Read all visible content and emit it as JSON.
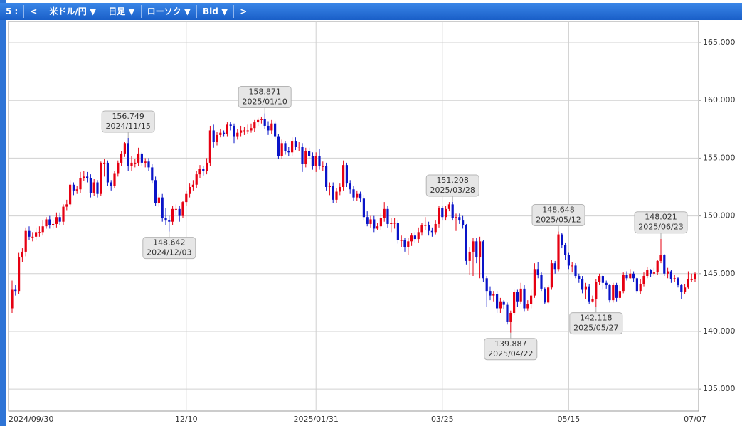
{
  "toolbar": {
    "items": [
      "5 :",
      "<",
      "米ドル/円 ▼",
      "日足 ▼",
      "ローソク ▼",
      "Bid ▼",
      ">"
    ]
  },
  "chart_data": {
    "type": "candlestick",
    "categories": [
      "2024/09/30",
      null,
      null,
      null,
      null,
      null,
      null,
      null,
      null,
      null,
      null,
      null,
      null,
      null,
      null,
      null,
      null,
      null,
      null,
      null,
      null,
      null,
      null,
      null,
      null,
      null,
      null,
      null,
      null,
      null,
      null,
      null,
      null,
      null,
      null,
      null,
      null,
      null,
      null,
      null,
      null,
      null,
      null,
      null,
      null,
      null,
      null,
      null,
      null,
      null,
      null,
      "12/10",
      null,
      null,
      null,
      null,
      null,
      null,
      null,
      null,
      null,
      null,
      null,
      null,
      null,
      null,
      null,
      null,
      null,
      null,
      null,
      null,
      null,
      null,
      null,
      null,
      null,
      null,
      null,
      null,
      null,
      null,
      null,
      null,
      null,
      null,
      null,
      null,
      null,
      "2025/01/31",
      null,
      null,
      null,
      null,
      null,
      null,
      null,
      null,
      null,
      null,
      null,
      null,
      null,
      null,
      null,
      null,
      null,
      null,
      null,
      null,
      null,
      null,
      null,
      null,
      null,
      null,
      null,
      null,
      null,
      null,
      null,
      null,
      null,
      null,
      null,
      null,
      "03/25",
      null,
      null,
      null,
      null,
      null,
      null,
      null,
      null,
      null,
      null,
      null,
      null,
      null,
      null,
      null,
      null,
      null,
      null,
      null,
      null,
      null,
      null,
      null,
      null,
      null,
      null,
      null,
      null,
      null,
      null,
      null,
      null,
      null,
      null,
      null,
      null,
      "05/15",
      null,
      null,
      null,
      null,
      null,
      null,
      null,
      null,
      null,
      null,
      null,
      null,
      null,
      null,
      null,
      null,
      null,
      null,
      null,
      null,
      null,
      null,
      null,
      null,
      null,
      null,
      null,
      null,
      null,
      null,
      null,
      null,
      null,
      null,
      null,
      null,
      "07/07"
    ],
    "open": [
      142.0,
      143.6,
      143.5,
      146.4,
      146.9,
      148.7,
      148.2,
      148.2,
      148.6,
      148.6,
      149.1,
      149.7,
      149.2,
      149.3,
      149.9,
      149.5,
      150.8,
      151.0,
      152.7,
      152.2,
      152.3,
      153.3,
      153.4,
      153.3,
      152.0,
      152.9,
      151.9,
      154.6,
      154.6,
      152.9,
      152.6,
      153.7,
      154.6,
      155.4,
      156.3,
      154.3,
      154.6,
      154.6,
      155.4,
      154.6,
      154.7,
      154.2,
      153.1,
      151.1,
      151.6,
      149.8,
      149.6,
      149.5,
      150.6,
      150.6,
      150.0,
      151.2,
      151.9,
      152.5,
      152.7,
      153.6,
      154.1,
      153.9,
      154.6,
      157.4,
      156.4,
      157.0,
      157.2,
      157.1,
      157.9,
      157.8,
      156.9,
      157.2,
      157.4,
      157.4,
      157.4,
      157.6,
      158.1,
      158.3,
      158.4,
      157.8,
      157.4,
      158.0,
      156.9,
      155.2,
      156.3,
      155.6,
      155.5,
      156.5,
      156.0,
      156.0,
      154.5,
      155.6,
      155.2,
      154.3,
      155.2,
      154.3,
      154.3,
      152.5,
      152.6,
      151.4,
      152.1,
      152.5,
      154.4,
      152.8,
      152.3,
      151.6,
      151.9,
      151.5,
      149.9,
      149.3,
      149.7,
      148.9,
      149.1,
      149.8,
      150.6,
      149.3,
      149.4,
      149.4,
      147.9,
      147.9,
      147.3,
      147.8,
      148.3,
      148.0,
      148.6,
      149.2,
      149.2,
      148.7,
      148.6,
      149.3,
      150.7,
      149.9,
      150.6,
      151.0,
      149.8,
      149.9,
      149.6,
      149.2,
      146.1,
      146.9,
      147.8,
      146.4,
      147.8,
      144.6,
      143.5,
      143.1,
      143.2,
      142.0,
      142.6,
      142.3,
      140.8,
      141.6,
      143.4,
      142.6,
      143.7,
      142.0,
      142.4,
      143.1,
      145.4,
      144.9,
      143.7,
      142.5,
      143.8,
      145.9,
      145.4,
      148.4,
      147.5,
      146.6,
      145.7,
      145.7,
      144.8,
      144.5,
      143.6,
      143.9,
      142.6,
      142.8,
      144.3,
      144.8,
      144.2,
      144.0,
      142.7,
      144.0,
      142.9,
      143.5,
      144.9,
      144.6,
      145.0,
      144.6,
      143.5,
      144.1,
      144.8,
      145.3,
      145.0,
      145.1,
      146.1,
      146.6,
      145.0,
      145.2,
      144.5,
      144.6,
      144.0,
      143.4,
      143.8,
      144.5,
      144.5
    ],
    "high": [
      144.4,
      144.0,
      146.8,
      147.2,
      149.0,
      149.1,
      148.6,
      149.0,
      149.1,
      149.6,
      149.9,
      150.0,
      149.6,
      150.3,
      150.3,
      151.0,
      151.4,
      153.1,
      152.9,
      152.6,
      153.8,
      153.9,
      153.8,
      153.6,
      153.2,
      153.1,
      154.7,
      154.9,
      154.8,
      153.1,
      153.9,
      154.8,
      155.6,
      156.4,
      156.749,
      155.2,
      154.9,
      155.9,
      155.5,
      155.0,
      155.0,
      154.5,
      153.4,
      151.9,
      151.9,
      150.7,
      150.0,
      150.9,
      151.0,
      150.9,
      151.3,
      152.2,
      152.8,
      153.1,
      153.9,
      154.4,
      154.3,
      155.0,
      157.8,
      157.9,
      157.3,
      157.5,
      157.4,
      158.1,
      158.1,
      158.0,
      157.5,
      157.8,
      157.7,
      157.9,
      158.0,
      158.3,
      158.5,
      158.6,
      158.871,
      158.2,
      158.3,
      158.2,
      157.1,
      156.6,
      156.5,
      156.0,
      156.8,
      156.8,
      156.4,
      156.3,
      155.9,
      155.9,
      155.5,
      155.5,
      155.8,
      154.7,
      154.6,
      152.9,
      152.9,
      152.4,
      152.8,
      154.8,
      154.6,
      153.1,
      152.6,
      152.2,
      152.1,
      151.8,
      150.4,
      150.0,
      150.0,
      149.4,
      150.2,
      151.2,
      150.9,
      149.8,
      149.8,
      149.6,
      148.3,
      148.1,
      148.1,
      148.5,
      148.6,
      149.0,
      149.4,
      149.9,
      149.5,
      149.0,
      149.6,
      150.9,
      150.9,
      150.9,
      151.2,
      151.208,
      150.2,
      150.2,
      150.0,
      149.3,
      147.3,
      148.1,
      148.1,
      148.2,
      147.9,
      144.8,
      143.9,
      143.5,
      143.5,
      142.9,
      142.7,
      142.5,
      141.8,
      143.6,
      143.6,
      144.2,
      144.0,
      142.7,
      143.6,
      145.9,
      146.0,
      145.1,
      143.8,
      144.0,
      146.2,
      146.1,
      148.648,
      148.5,
      147.7,
      146.8,
      146.0,
      145.9,
      145.0,
      144.8,
      144.2,
      144.1,
      143.1,
      144.5,
      145.0,
      144.9,
      144.4,
      144.1,
      144.2,
      144.2,
      144.0,
      145.1,
      145.2,
      145.4,
      145.2,
      144.7,
      144.5,
      145.1,
      145.6,
      145.4,
      145.5,
      146.2,
      148.021,
      146.7,
      145.5,
      145.3,
      144.9,
      144.7,
      144.1,
      144.1,
      145.2,
      145.0,
      145.1
    ],
    "low": [
      141.6,
      143.1,
      143.2,
      146.0,
      146.5,
      147.9,
      147.8,
      147.9,
      148.2,
      148.3,
      148.9,
      148.9,
      148.9,
      149.0,
      149.2,
      149.2,
      150.5,
      150.8,
      151.8,
      151.9,
      152.0,
      153.0,
      152.9,
      151.6,
      151.7,
      151.6,
      151.7,
      153.4,
      152.6,
      152.2,
      152.4,
      153.4,
      154.3,
      155.1,
      153.9,
      153.9,
      154.2,
      154.3,
      154.3,
      154.2,
      153.9,
      152.8,
      150.9,
      150.8,
      149.5,
      149.2,
      148.642,
      149.2,
      150.1,
      149.5,
      149.8,
      150.9,
      151.6,
      152.2,
      152.4,
      153.3,
      153.5,
      153.6,
      154.3,
      155.9,
      156.1,
      156.8,
      156.9,
      156.9,
      157.4,
      156.3,
      156.6,
      156.9,
      157.0,
      157.1,
      157.2,
      157.3,
      157.8,
      158.0,
      157.5,
      157.0,
      157.1,
      156.6,
      154.9,
      154.9,
      155.3,
      155.2,
      155.2,
      155.7,
      155.6,
      153.8,
      154.2,
      154.9,
      154.0,
      153.8,
      154.0,
      153.9,
      152.2,
      151.8,
      151.1,
      151.1,
      151.8,
      152.2,
      152.5,
      151.9,
      151.3,
      151.3,
      151.2,
      149.6,
      149.1,
      149.0,
      148.6,
      148.8,
      148.8,
      149.5,
      149.0,
      148.6,
      148.9,
      147.6,
      147.3,
      146.9,
      146.6,
      147.4,
      147.7,
      147.7,
      148.3,
      148.8,
      148.3,
      148.2,
      148.4,
      149.0,
      149.6,
      149.6,
      150.4,
      149.6,
      148.7,
      149.3,
      148.9,
      145.8,
      144.9,
      144.8,
      145.9,
      144.6,
      144.3,
      142.1,
      142.7,
      142.6,
      141.6,
      141.6,
      141.9,
      140.6,
      139.887,
      141.4,
      142.1,
      142.4,
      141.7,
      141.8,
      142.0,
      142.9,
      144.6,
      143.5,
      142.4,
      142.4,
      143.6,
      145.0,
      145.2,
      147.2,
      146.2,
      145.4,
      145.1,
      144.6,
      144.2,
      143.3,
      142.8,
      142.4,
      142.5,
      142.118,
      144.0,
      143.6,
      143.7,
      142.5,
      142.5,
      142.6,
      142.7,
      143.3,
      144.4,
      144.5,
      144.3,
      143.3,
      143.2,
      143.9,
      144.6,
      144.7,
      144.8,
      144.9,
      145.9,
      144.8,
      144.6,
      144.2,
      144.3,
      143.8,
      142.8,
      143.2,
      143.7,
      144.3,
      144.3
    ],
    "close": [
      143.6,
      143.5,
      146.4,
      146.9,
      148.7,
      148.2,
      148.2,
      148.6,
      148.6,
      149.1,
      149.7,
      149.2,
      149.3,
      149.9,
      149.5,
      150.8,
      151.0,
      152.7,
      152.2,
      152.3,
      153.3,
      153.4,
      153.3,
      152.0,
      152.9,
      151.9,
      154.6,
      154.6,
      152.9,
      152.6,
      153.7,
      154.6,
      155.4,
      156.3,
      154.3,
      154.6,
      154.6,
      155.4,
      154.6,
      154.7,
      154.2,
      153.1,
      151.1,
      151.6,
      149.8,
      149.6,
      149.5,
      150.6,
      150.6,
      150.0,
      151.2,
      151.9,
      152.5,
      152.7,
      153.6,
      154.1,
      153.9,
      154.6,
      157.4,
      156.4,
      157.0,
      157.2,
      157.1,
      157.9,
      157.8,
      156.9,
      157.2,
      157.4,
      157.4,
      157.4,
      157.6,
      158.1,
      158.3,
      158.4,
      157.8,
      157.4,
      158.0,
      156.9,
      155.2,
      156.3,
      155.6,
      155.5,
      156.5,
      156.0,
      156.0,
      154.5,
      155.6,
      155.2,
      154.3,
      155.2,
      154.3,
      154.3,
      152.5,
      152.6,
      151.4,
      152.1,
      152.5,
      154.4,
      152.8,
      152.3,
      151.6,
      151.9,
      151.5,
      149.9,
      149.3,
      149.7,
      148.9,
      149.1,
      149.8,
      150.6,
      149.3,
      149.4,
      149.4,
      147.9,
      147.9,
      147.3,
      147.8,
      148.3,
      148.0,
      148.6,
      149.2,
      149.2,
      148.7,
      148.6,
      149.3,
      150.7,
      149.9,
      150.6,
      151.0,
      149.8,
      149.9,
      149.6,
      149.2,
      146.1,
      146.9,
      147.8,
      146.4,
      147.8,
      144.6,
      143.5,
      143.1,
      143.2,
      142.0,
      142.6,
      142.3,
      140.8,
      141.6,
      143.4,
      142.6,
      143.7,
      142.0,
      142.4,
      143.1,
      145.4,
      144.9,
      143.7,
      142.5,
      143.8,
      145.9,
      145.4,
      148.4,
      147.5,
      146.6,
      145.7,
      145.7,
      144.8,
      144.5,
      143.6,
      143.9,
      142.6,
      142.8,
      144.3,
      144.8,
      144.2,
      144.0,
      142.7,
      144.0,
      142.9,
      143.5,
      144.9,
      144.6,
      145.0,
      144.6,
      143.5,
      144.1,
      144.8,
      145.3,
      145.0,
      145.1,
      146.1,
      146.6,
      145.0,
      145.2,
      144.5,
      144.6,
      144.0,
      143.4,
      143.8,
      144.5,
      144.5,
      145.0
    ],
    "up_color": "#e60012",
    "down_color": "#0a14c8",
    "ylim": [
      133.1,
      166.85
    ],
    "yticks": [
      {
        "value": 135,
        "label": "135.000"
      },
      {
        "value": 140,
        "label": "140.000"
      },
      {
        "value": 145,
        "label": "145.000"
      },
      {
        "value": 150,
        "label": "150.000"
      },
      {
        "value": 155,
        "label": "155.000"
      },
      {
        "value": 160,
        "label": "160.000"
      },
      {
        "value": 165,
        "label": "165.000"
      }
    ],
    "grid": true,
    "annotations": [
      {
        "value": 156.749,
        "date": "2024/11/15"
      },
      {
        "value": 148.642,
        "date": "2024/12/03"
      },
      {
        "value": 158.871,
        "date": "2025/01/10"
      },
      {
        "value": 151.208,
        "date": "2025/03/28"
      },
      {
        "value": 139.887,
        "date": "2025/04/22"
      },
      {
        "value": 148.648,
        "date": "2025/05/12"
      },
      {
        "value": 142.118,
        "date": "2025/05/27"
      },
      {
        "value": 148.021,
        "date": "2025/06/23"
      }
    ]
  }
}
